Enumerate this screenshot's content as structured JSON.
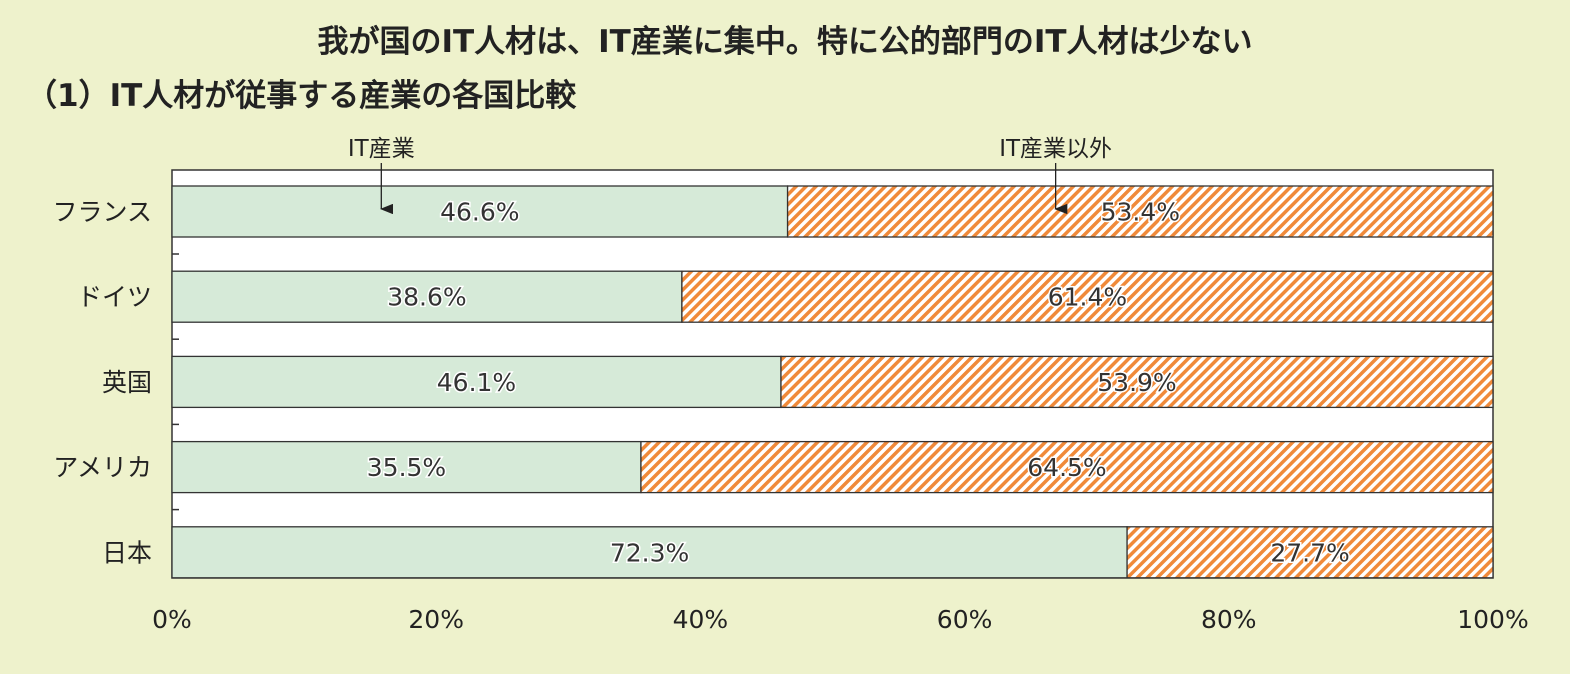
{
  "chart_data": {
    "type": "bar",
    "orientation": "horizontal",
    "stacked": true,
    "title": "我が国のIT人材は、IT産業に集中。特に公的部門のIT人材は少ない",
    "subtitle": "（1）IT人材が従事する産業の各国比較",
    "categories": [
      "フランス",
      "ドイツ",
      "英国",
      "アメリカ",
      "日本"
    ],
    "series": [
      {
        "name": "IT産業",
        "values": [
          46.6,
          38.6,
          46.1,
          35.5,
          72.3
        ],
        "labels": [
          "46.6%",
          "38.6%",
          "46.1%",
          "35.5%",
          "72.3%"
        ],
        "color": "#d6ead8",
        "fill": "solid"
      },
      {
        "name": "IT産業以外",
        "values": [
          53.4,
          61.4,
          53.9,
          64.5,
          27.7
        ],
        "labels": [
          "53.4%",
          "61.4%",
          "53.9%",
          "64.5%",
          "27.7%"
        ],
        "color": "#f08a3a",
        "fill": "diagonal-hatch"
      }
    ],
    "xlim": [
      0,
      100
    ],
    "xticks": [
      0,
      20,
      40,
      60,
      80,
      100
    ],
    "xtick_labels": [
      "0%",
      "20%",
      "40%",
      "60%",
      "80%",
      "100%"
    ],
    "grid": false,
    "legend": "callout-arrows-above-first-bar"
  }
}
